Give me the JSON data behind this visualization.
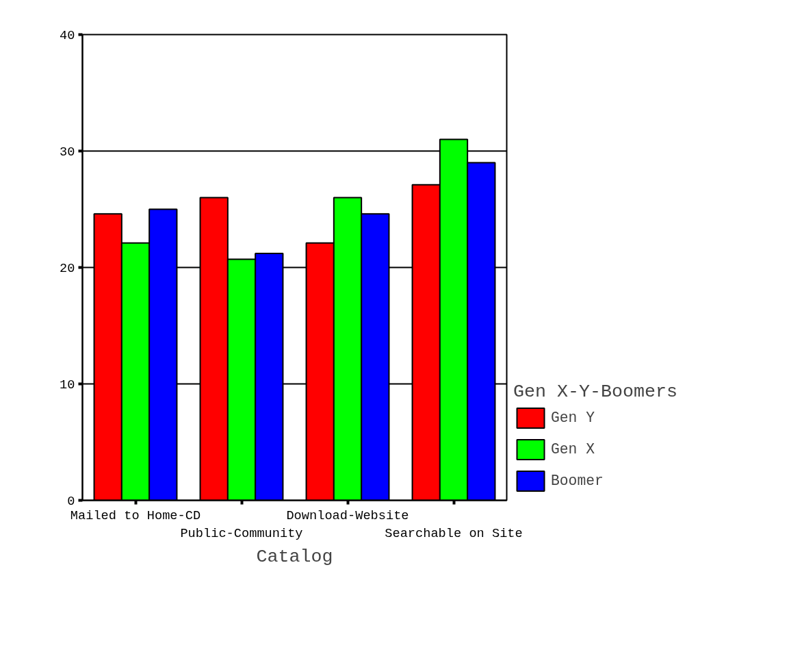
{
  "chart_data": {
    "type": "bar",
    "xlabel": "Catalog",
    "legend_title": "Gen X-Y-Boomers",
    "categories": [
      "Mailed to Home-CD",
      "Public-Community",
      "Download-Website",
      "Searchable on Site"
    ],
    "series": [
      {
        "name": "Gen Y",
        "color": "#ff0000",
        "values": [
          24.6,
          26.0,
          22.1,
          27.1
        ]
      },
      {
        "name": "Gen X",
        "color": "#00ff00",
        "values": [
          22.1,
          20.7,
          26.0,
          31.0
        ]
      },
      {
        "name": "Boomer",
        "color": "#0000ff",
        "values": [
          25.0,
          21.2,
          24.6,
          29.0
        ]
      }
    ],
    "ylim": [
      0,
      40
    ],
    "yticks": [
      0,
      10,
      20,
      30,
      40
    ],
    "grid": "y",
    "legend": "right"
  }
}
